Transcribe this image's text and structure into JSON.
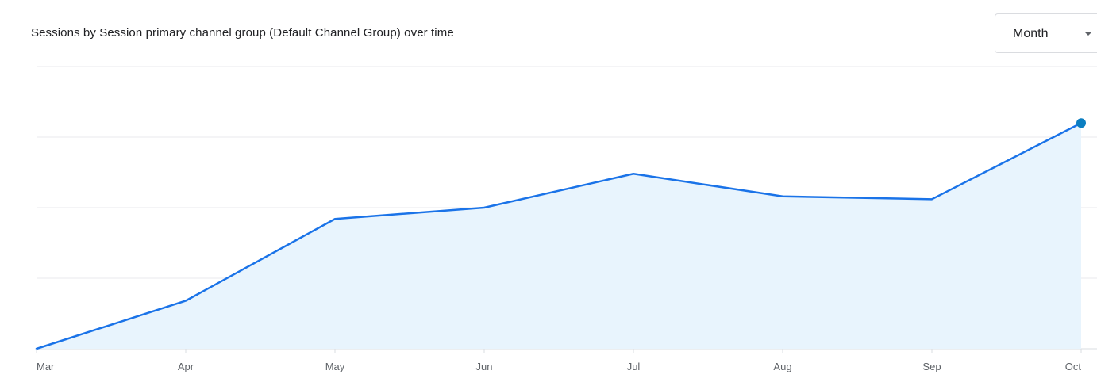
{
  "header": {
    "title": "Sessions by Session primary channel group (Default Channel Group) over time"
  },
  "period_select": {
    "value": "Month",
    "icon": "dropdown-caret-icon"
  },
  "colors": {
    "line": "#1a73e8",
    "area": "#e8f4fd",
    "marker": "#0b7ec1"
  },
  "chart_data": {
    "type": "area",
    "title": "Sessions by Session primary channel group (Default Channel Group) over time",
    "categories": [
      "Mar",
      "Apr",
      "May",
      "Jun",
      "Jul",
      "Aug",
      "Sep",
      "Oct"
    ],
    "series": [
      {
        "values": [
          0,
          34,
          92,
          100,
          124,
          108,
          106,
          160
        ]
      }
    ],
    "ylim": [
      0,
      200
    ],
    "grid": true,
    "y_tick_labels_visible": false
  }
}
